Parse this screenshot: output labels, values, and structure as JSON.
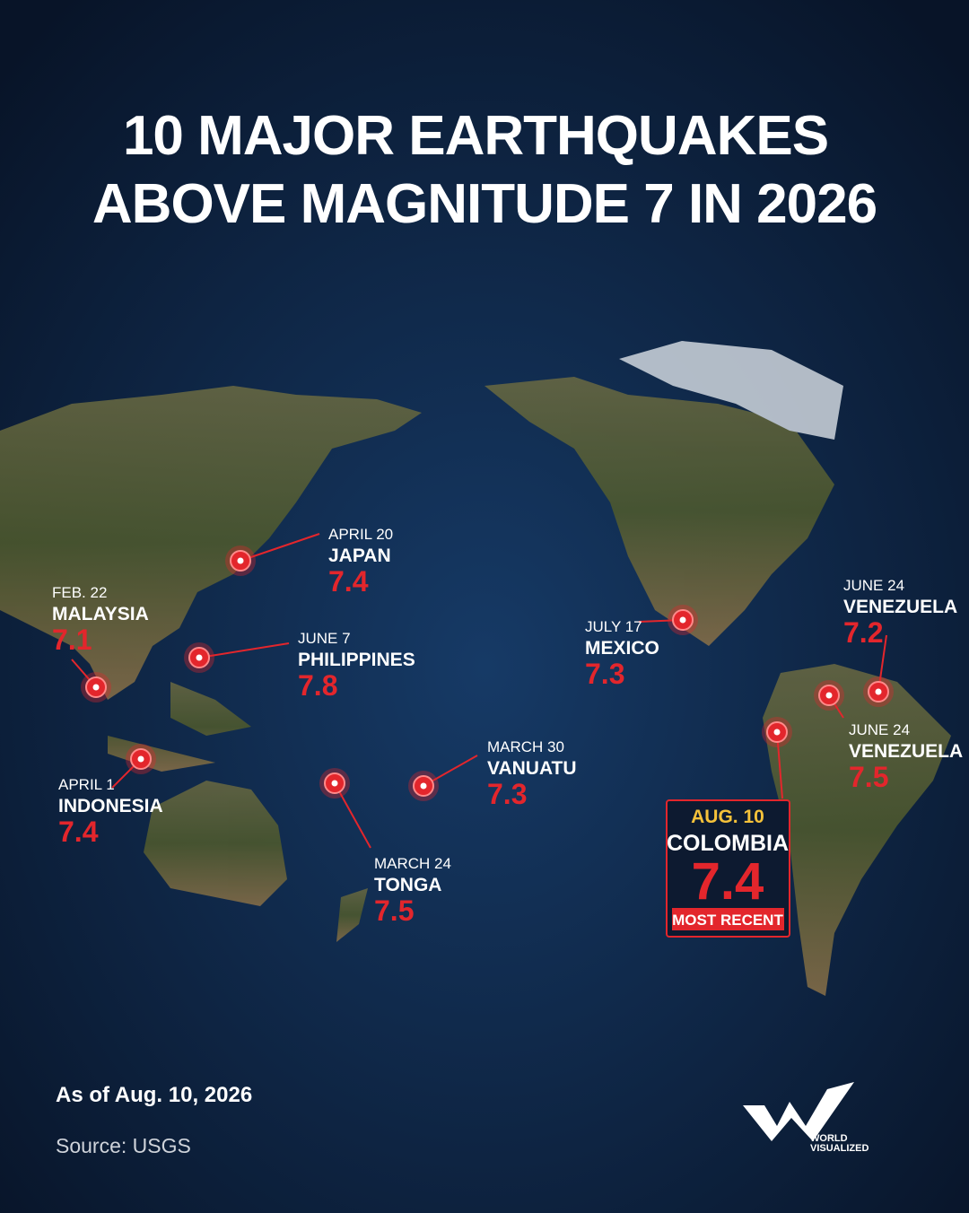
{
  "title": {
    "lines": [
      "10 MAJOR EARTHQUAKES",
      "ABOVE MAGNITUDE 7 IN 2026"
    ]
  },
  "quakes": [
    {
      "date": "APRIL 20",
      "country": "JAPAN",
      "magnitude": 7.4
    },
    {
      "date": "FEB. 22",
      "country": "MALAYSIA",
      "magnitude": 7.1
    },
    {
      "date": "JUNE 7",
      "country": "PHILIPPINES",
      "magnitude": 7.8
    },
    {
      "date": "APRIL 1",
      "country": "INDONESIA",
      "magnitude": 7.4
    },
    {
      "date": "MARCH 24",
      "country": "TONGA",
      "magnitude": 7.5
    },
    {
      "date": "MARCH 30",
      "country": "VANUATU",
      "magnitude": 7.3
    },
    {
      "date": "JULY 17",
      "country": "MEXICO",
      "magnitude": 7.3
    },
    {
      "date": "JUNE 24",
      "country": "VENEZUELA",
      "magnitude": 7.2
    },
    {
      "date": "JUNE 24",
      "country": "VENEZUELA",
      "magnitude": 7.5
    },
    {
      "date": "AUG. 10",
      "country": "COLOMBIA",
      "magnitude": 7.4,
      "tag": "MOST RECENT"
    }
  ],
  "footer": {
    "as_of": "As of Aug. 10, 2026",
    "source": "Source: USGS"
  },
  "logo": {
    "line1": "WORLD",
    "line2": "VISUALIZED"
  }
}
